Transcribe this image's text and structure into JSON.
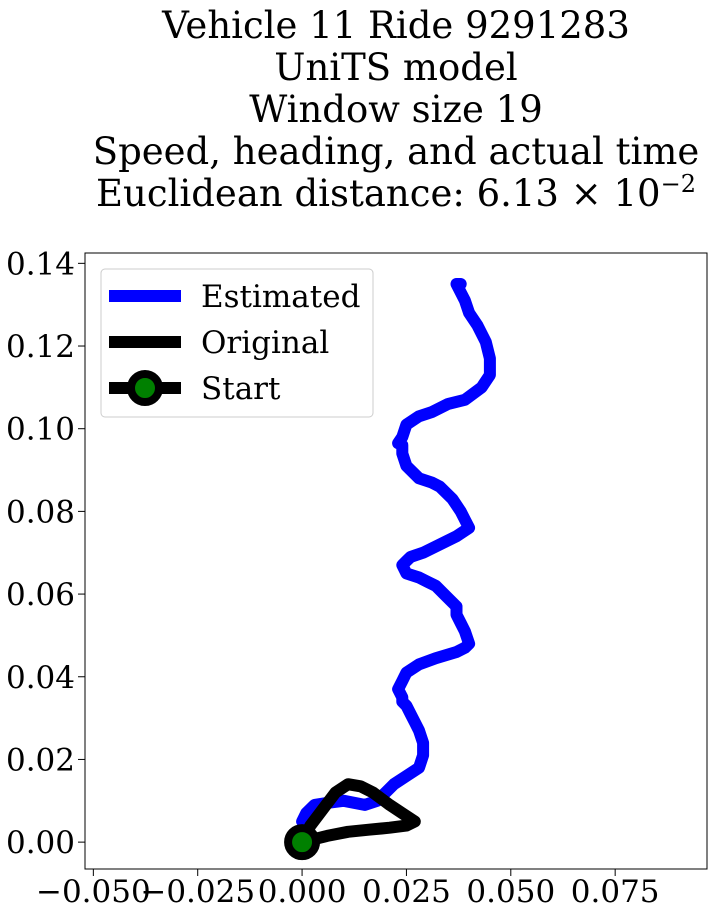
{
  "chart_data": {
    "type": "line",
    "title_lines": [
      "Vehicle 11 Ride 9291283",
      "UniTS model",
      "Window size 19",
      "Speed, heading, and actual time",
      "Euclidean distance: 6.13 × 10"
    ],
    "title_exponent": "−2",
    "xlabel": "",
    "ylabel": "",
    "xlim": [
      -0.052,
      0.097
    ],
    "ylim": [
      -0.0065,
      0.1425
    ],
    "xticks": [
      -0.05,
      -0.025,
      0.0,
      0.025,
      0.05,
      0.075
    ],
    "xtick_labels": [
      "−0.050",
      "−0.025",
      "0.000",
      "0.025",
      "0.050",
      "0.075"
    ],
    "yticks": [
      0.0,
      0.02,
      0.04,
      0.06,
      0.08,
      0.1,
      0.12,
      0.14
    ],
    "ytick_labels": [
      "0.00",
      "0.02",
      "0.04",
      "0.06",
      "0.08",
      "0.10",
      "0.12",
      "0.14"
    ],
    "grid": false,
    "legend_position": "top-left",
    "series": [
      {
        "name": "Estimated",
        "color": "#0000ff",
        "x": [
          0.0,
          0.001,
          0.003,
          0.006,
          0.01,
          0.015,
          0.018,
          0.02,
          0.022,
          0.025,
          0.028,
          0.029,
          0.029,
          0.028,
          0.027,
          0.026,
          0.025,
          0.024,
          0.024,
          0.023,
          0.024,
          0.025,
          0.028,
          0.032,
          0.037,
          0.039,
          0.04,
          0.039,
          0.038,
          0.037,
          0.037,
          0.035,
          0.034,
          0.032,
          0.03,
          0.028,
          0.025,
          0.024,
          0.025,
          0.026,
          0.029,
          0.033,
          0.037,
          0.04,
          0.039,
          0.038,
          0.036,
          0.033,
          0.031,
          0.028,
          0.025,
          0.024,
          0.024,
          0.023,
          0.024,
          0.025,
          0.028,
          0.031,
          0.035,
          0.039,
          0.043,
          0.045,
          0.045,
          0.044,
          0.042,
          0.04,
          0.039,
          0.038,
          0.037,
          0.038
        ],
        "y": [
          0.005,
          0.007,
          0.009,
          0.0095,
          0.01,
          0.009,
          0.01,
          0.012,
          0.014,
          0.016,
          0.018,
          0.021,
          0.024,
          0.027,
          0.029,
          0.031,
          0.033,
          0.034,
          0.035,
          0.037,
          0.039,
          0.041,
          0.043,
          0.0445,
          0.046,
          0.047,
          0.048,
          0.051,
          0.053,
          0.055,
          0.057,
          0.059,
          0.06,
          0.062,
          0.063,
          0.064,
          0.065,
          0.067,
          0.068,
          0.069,
          0.07,
          0.072,
          0.074,
          0.076,
          0.078,
          0.08,
          0.083,
          0.086,
          0.087,
          0.088,
          0.091,
          0.094,
          0.096,
          0.0965,
          0.098,
          0.101,
          0.103,
          0.104,
          0.106,
          0.107,
          0.11,
          0.113,
          0.117,
          0.121,
          0.125,
          0.128,
          0.131,
          0.133,
          0.135,
          0.135
        ]
      },
      {
        "name": "Original",
        "color": "#000000",
        "x": [
          0.0,
          0.002,
          0.005,
          0.008,
          0.011,
          0.014,
          0.017,
          0.021,
          0.024,
          0.027,
          0.025,
          0.021,
          0.016,
          0.011,
          0.006,
          0.002,
          0.0
        ],
        "y": [
          0.0,
          0.004,
          0.008,
          0.012,
          0.014,
          0.0135,
          0.012,
          0.009,
          0.007,
          0.005,
          0.004,
          0.0035,
          0.003,
          0.0025,
          0.0015,
          0.0005,
          0.0
        ]
      }
    ],
    "start_marker": {
      "name": "Start",
      "x": 0.0,
      "y": 0.0,
      "edge_color": "#000000",
      "face_color": "#008000"
    }
  }
}
